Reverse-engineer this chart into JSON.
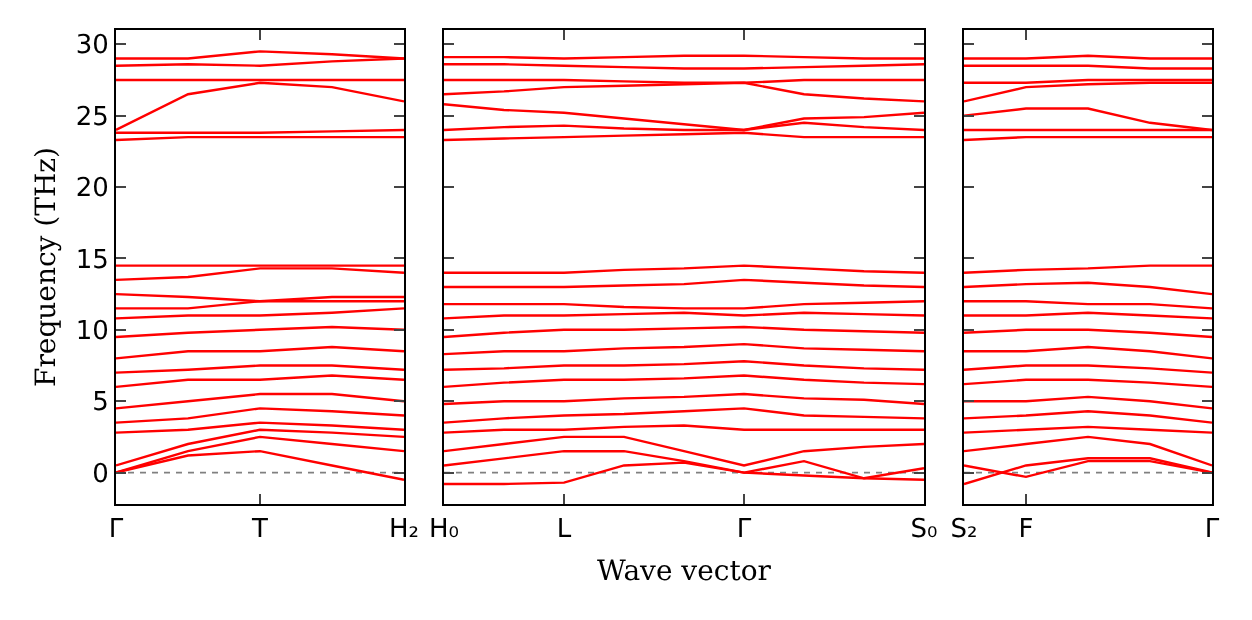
{
  "chart_data": [
    {
      "type": "line",
      "ylabel": "Frequency (THz)",
      "color": "#ff0000",
      "categories": [
        "Γ",
        null,
        "T",
        null,
        "H₂"
      ],
      "ylim": [
        -2.2,
        31
      ],
      "yticks": [
        0,
        5,
        10,
        15,
        20,
        25,
        30
      ],
      "grid": false,
      "ref_lines": [
        {
          "axis": "y",
          "value": 0,
          "color": "#808080",
          "line_style": "dotted"
        }
      ],
      "series": [
        {
          "values": [
            0,
            1.2,
            1.5,
            0.5,
            -0.5
          ]
        },
        {
          "values": [
            0,
            1.5,
            2.5,
            2,
            1.5
          ]
        },
        {
          "values": [
            0.5,
            2,
            3,
            2.8,
            2.5
          ]
        },
        {
          "values": [
            2.8,
            3,
            3.5,
            3.3,
            3
          ]
        },
        {
          "values": [
            3.5,
            3.8,
            4.5,
            4.3,
            4
          ]
        },
        {
          "values": [
            4.5,
            5,
            5.5,
            5.5,
            5
          ]
        },
        {
          "values": [
            6,
            6.5,
            6.5,
            6.8,
            6.5
          ]
        },
        {
          "values": [
            7,
            7.2,
            7.5,
            7.5,
            7.2
          ]
        },
        {
          "values": [
            8,
            8.5,
            8.5,
            8.8,
            8.5
          ]
        },
        {
          "values": [
            9.5,
            9.8,
            10,
            10.2,
            10
          ]
        },
        {
          "values": [
            10.8,
            11,
            11,
            11.2,
            11.5
          ]
        },
        {
          "values": [
            11.5,
            11.5,
            12,
            12,
            12
          ]
        },
        {
          "values": [
            12.5,
            12.3,
            12,
            12.3,
            12.3
          ]
        },
        {
          "values": [
            13.5,
            13.7,
            14.3,
            14.3,
            14
          ]
        },
        {
          "values": [
            14.5,
            14.5,
            14.5,
            14.5,
            14.5
          ]
        },
        {
          "values": [
            23.3,
            23.5,
            23.5,
            23.5,
            23.5
          ]
        },
        {
          "values": [
            23.8,
            23.8,
            23.8,
            23.9,
            24
          ]
        },
        {
          "values": [
            24,
            26.5,
            27.3,
            27,
            26
          ]
        },
        {
          "values": [
            27.5,
            27.5,
            27.5,
            27.5,
            27.5
          ]
        },
        {
          "values": [
            28.5,
            28.6,
            28.5,
            28.8,
            29
          ]
        },
        {
          "values": [
            29,
            29,
            29.5,
            29.3,
            29
          ]
        }
      ]
    },
    {
      "type": "line",
      "xlabel": "Wave vector",
      "color": "#ff0000",
      "categories": [
        "H₀",
        null,
        "L",
        null,
        null,
        "Γ",
        null,
        null,
        "S₀"
      ],
      "ylim": [
        -2.2,
        31
      ],
      "yticks": [
        0,
        5,
        10,
        15,
        20,
        25,
        30
      ],
      "tick_labels": "x",
      "grid": false,
      "ref_lines": [
        {
          "axis": "y",
          "value": 0,
          "color": "#808080",
          "line_style": "dotted"
        }
      ],
      "series": [
        {
          "values": [
            -0.8,
            -0.8,
            -0.7,
            0.5,
            0.7,
            0,
            0.8,
            -0.4,
            0.3
          ]
        },
        {
          "values": [
            0.5,
            1,
            1.5,
            1.5,
            0.8,
            0,
            -0.2,
            -0.4,
            -0.5
          ]
        },
        {
          "values": [
            1.5,
            2,
            2.5,
            2.5,
            1.5,
            0.5,
            1.5,
            1.8,
            2
          ]
        },
        {
          "values": [
            2.8,
            3,
            3,
            3.2,
            3.3,
            3,
            3,
            3,
            3
          ]
        },
        {
          "values": [
            3.5,
            3.8,
            4,
            4.1,
            4.3,
            4.5,
            4,
            3.9,
            3.8
          ]
        },
        {
          "values": [
            4.8,
            5,
            5,
            5.2,
            5.3,
            5.5,
            5.2,
            5.1,
            4.8
          ]
        },
        {
          "values": [
            6,
            6.3,
            6.5,
            6.5,
            6.6,
            6.8,
            6.5,
            6.3,
            6.2
          ]
        },
        {
          "values": [
            7.2,
            7.3,
            7.5,
            7.5,
            7.6,
            7.8,
            7.5,
            7.3,
            7.2
          ]
        },
        {
          "values": [
            8.3,
            8.5,
            8.5,
            8.7,
            8.8,
            9,
            8.7,
            8.6,
            8.5
          ]
        },
        {
          "values": [
            9.5,
            9.8,
            10,
            10,
            10.1,
            10.2,
            10,
            9.9,
            9.8
          ]
        },
        {
          "values": [
            10.8,
            11,
            11,
            11.1,
            11.2,
            11,
            11.2,
            11.1,
            11
          ]
        },
        {
          "values": [
            11.8,
            11.8,
            11.8,
            11.6,
            11.5,
            11.5,
            11.8,
            11.9,
            12
          ]
        },
        {
          "values": [
            13,
            13,
            13,
            13.1,
            13.2,
            13.5,
            13.3,
            13.1,
            13
          ]
        },
        {
          "values": [
            14,
            14,
            14,
            14.2,
            14.3,
            14.5,
            14.3,
            14.1,
            14
          ]
        },
        {
          "values": [
            23.3,
            23.4,
            23.5,
            23.6,
            23.7,
            23.8,
            23.5,
            23.5,
            23.5
          ]
        },
        {
          "values": [
            24,
            24.2,
            24.3,
            24.1,
            24,
            24,
            24.5,
            24.2,
            24
          ]
        },
        {
          "values": [
            25.8,
            25.4,
            25.2,
            24.8,
            24.4,
            24,
            24.8,
            24.9,
            25.2
          ]
        },
        {
          "values": [
            26.5,
            26.7,
            27,
            27.1,
            27.2,
            27.3,
            26.5,
            26.2,
            26
          ]
        },
        {
          "values": [
            27.5,
            27.5,
            27.5,
            27.4,
            27.3,
            27.3,
            27.5,
            27.5,
            27.5
          ]
        },
        {
          "values": [
            28.6,
            28.6,
            28.5,
            28.4,
            28.3,
            28.3,
            28.4,
            28.5,
            28.6
          ]
        },
        {
          "values": [
            29.1,
            29.1,
            29,
            29.1,
            29.2,
            29.2,
            29.1,
            29,
            29
          ]
        }
      ]
    },
    {
      "type": "line",
      "color": "#ff0000",
      "categories": [
        "S₂",
        "F",
        null,
        null,
        "Γ"
      ],
      "ylim": [
        -2.2,
        31
      ],
      "yticks": [
        0,
        5,
        10,
        15,
        20,
        25,
        30
      ],
      "tick_labels": "x",
      "grid": false,
      "ref_lines": [
        {
          "axis": "y",
          "value": 0,
          "color": "#808080",
          "line_style": "dotted"
        }
      ],
      "series": [
        {
          "values": [
            0.5,
            -0.3,
            0.8,
            0.8,
            0
          ]
        },
        {
          "values": [
            -0.8,
            0.5,
            1,
            1,
            0
          ]
        },
        {
          "values": [
            1.5,
            2,
            2.5,
            2,
            0.5
          ]
        },
        {
          "values": [
            2.8,
            3,
            3.2,
            3,
            2.8
          ]
        },
        {
          "values": [
            3.8,
            4,
            4.3,
            4,
            3.5
          ]
        },
        {
          "values": [
            5,
            5,
            5.3,
            5,
            4.5
          ]
        },
        {
          "values": [
            6.2,
            6.5,
            6.5,
            6.3,
            6
          ]
        },
        {
          "values": [
            7.2,
            7.5,
            7.5,
            7.3,
            7
          ]
        },
        {
          "values": [
            8.5,
            8.5,
            8.8,
            8.5,
            8
          ]
        },
        {
          "values": [
            9.8,
            10,
            10,
            9.8,
            9.5
          ]
        },
        {
          "values": [
            11,
            11,
            11.2,
            11,
            10.8
          ]
        },
        {
          "values": [
            12,
            12,
            11.8,
            11.8,
            11.5
          ]
        },
        {
          "values": [
            13,
            13.2,
            13.3,
            13,
            12.5
          ]
        },
        {
          "values": [
            14,
            14.2,
            14.3,
            14.5,
            14.5
          ]
        },
        {
          "values": [
            23.3,
            23.5,
            23.5,
            23.5,
            23.5
          ]
        },
        {
          "values": [
            24,
            24,
            24,
            24,
            24
          ]
        },
        {
          "values": [
            25,
            25.5,
            25.5,
            24.5,
            24
          ]
        },
        {
          "values": [
            26,
            27,
            27.2,
            27.3,
            27.3
          ]
        },
        {
          "values": [
            27.3,
            27.3,
            27.5,
            27.5,
            27.5
          ]
        },
        {
          "values": [
            28.5,
            28.5,
            28.5,
            28.3,
            28.3
          ]
        },
        {
          "values": [
            29,
            29,
            29.2,
            29,
            29
          ]
        }
      ]
    }
  ]
}
